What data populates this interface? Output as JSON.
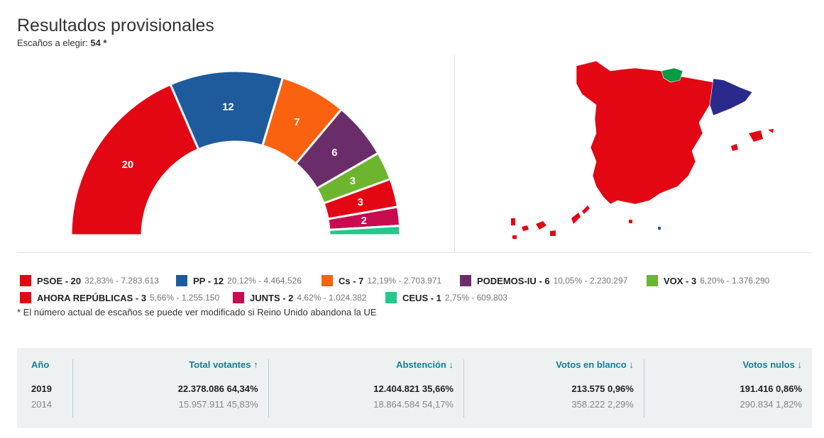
{
  "header": {
    "title": "Resultados provisionales",
    "seats_label": "Escaños a elegir:",
    "seats_value": "54 *"
  },
  "chart_data": {
    "type": "hemicycle",
    "title": "Resultados provisionales",
    "total_seats": 54,
    "parties": [
      {
        "name": "PSOE",
        "seats": 20,
        "pct": "32,83%",
        "votes": "7.283.613",
        "color": "#e30613",
        "label": "PSOE - 20",
        "detail": "32,83% - 7.283.613"
      },
      {
        "name": "PP",
        "seats": 12,
        "pct": "20,12%",
        "votes": "4.464.526",
        "color": "#1d5b9c",
        "label": "PP - 12",
        "detail": "20,12% - 4.464.526"
      },
      {
        "name": "Cs",
        "seats": 7,
        "pct": "12,19%",
        "votes": "2.703.971",
        "color": "#fa6210",
        "label": "Cs - 7",
        "detail": "12,19% - 2.703.971"
      },
      {
        "name": "PODEMOS-IU",
        "seats": 6,
        "pct": "10,05%",
        "votes": "2.230.297",
        "color": "#6b2d6a",
        "label": "PODEMOS-IU - 6",
        "detail": "10,05% - 2.230.297"
      },
      {
        "name": "VOX",
        "seats": 3,
        "pct": "6,20%",
        "votes": "1.376.290",
        "color": "#6db52f",
        "label": "VOX - 3",
        "detail": "6,20% - 1.376.290"
      },
      {
        "name": "AHORA REPÚBLICAS",
        "seats": 3,
        "pct": "5,66%",
        "votes": "1.255.150",
        "color": "#e30613",
        "label": "AHORA REPÚBLICAS - 3",
        "detail": "5,66% - 1.255.150"
      },
      {
        "name": "JUNTS",
        "seats": 2,
        "pct": "4,62%",
        "votes": "1.024.382",
        "color": "#c80b4f",
        "label": "JUNTS - 2",
        "detail": "4,62% - 1.024.382"
      },
      {
        "name": "CEUS",
        "seats": 1,
        "pct": "2,75%",
        "votes": "609.803",
        "color": "#22c98a",
        "label": "CEUS - 1",
        "detail": "2,75% - 609.803"
      }
    ]
  },
  "note": "* El número actual de escaños se puede ver modificado si Reino Unido abandona la UE",
  "stats": {
    "year_header": "Año",
    "columns": [
      {
        "header": "Total votantes ↑",
        "r2019": "22.378.086  64,34%",
        "r2014": "15.957.911  45,83%"
      },
      {
        "header": "Abstención ↓",
        "r2019": "12.404.821  35,66%",
        "r2014": "18.864.584  54,17%"
      },
      {
        "header": "Votos en blanco ↓",
        "r2019": "213.575  0,96%",
        "r2014": "358.222  2,29%"
      },
      {
        "header": "Votos nulos ↓",
        "r2019": "191.416  0,86%",
        "r2014": "290.834  1,82%"
      }
    ],
    "years": [
      "2019",
      "2014"
    ]
  }
}
